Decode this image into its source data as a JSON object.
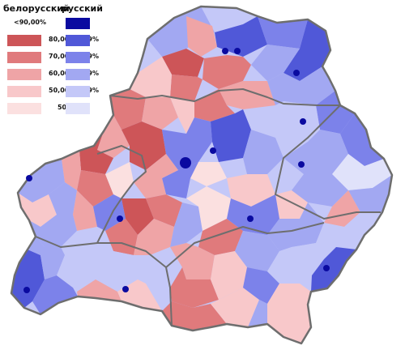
{
  "legend": {
    "belarusian_heading": "белорусский",
    "russian_heading": "русский",
    "rows": [
      {
        "label": "<90,00%",
        "belarusian_color": null,
        "russian_color": "#0a0aa0"
      },
      {
        "label": "80,00-89,99%",
        "belarusian_color": "#cd5558",
        "russian_color": "#5058d8"
      },
      {
        "label": "70,00-79,99%",
        "belarusian_color": "#e07a7c",
        "russian_color": "#7c82ea"
      },
      {
        "label": "60,00-69,99%",
        "belarusian_color": "#efa4a6",
        "russian_color": "#a2a8f2"
      },
      {
        "label": "50,00-59,99%",
        "belarusian_color": "#f8c8ca",
        "russian_color": "#c4c8f8"
      },
      {
        "label": "50,00%<",
        "belarusian_color": "#fbe0e0",
        "russian_color": "#e0e2fa"
      }
    ]
  },
  "map": {
    "border_color": "#6e6e6e",
    "city_marker_color": "#0a0aa0"
  }
}
